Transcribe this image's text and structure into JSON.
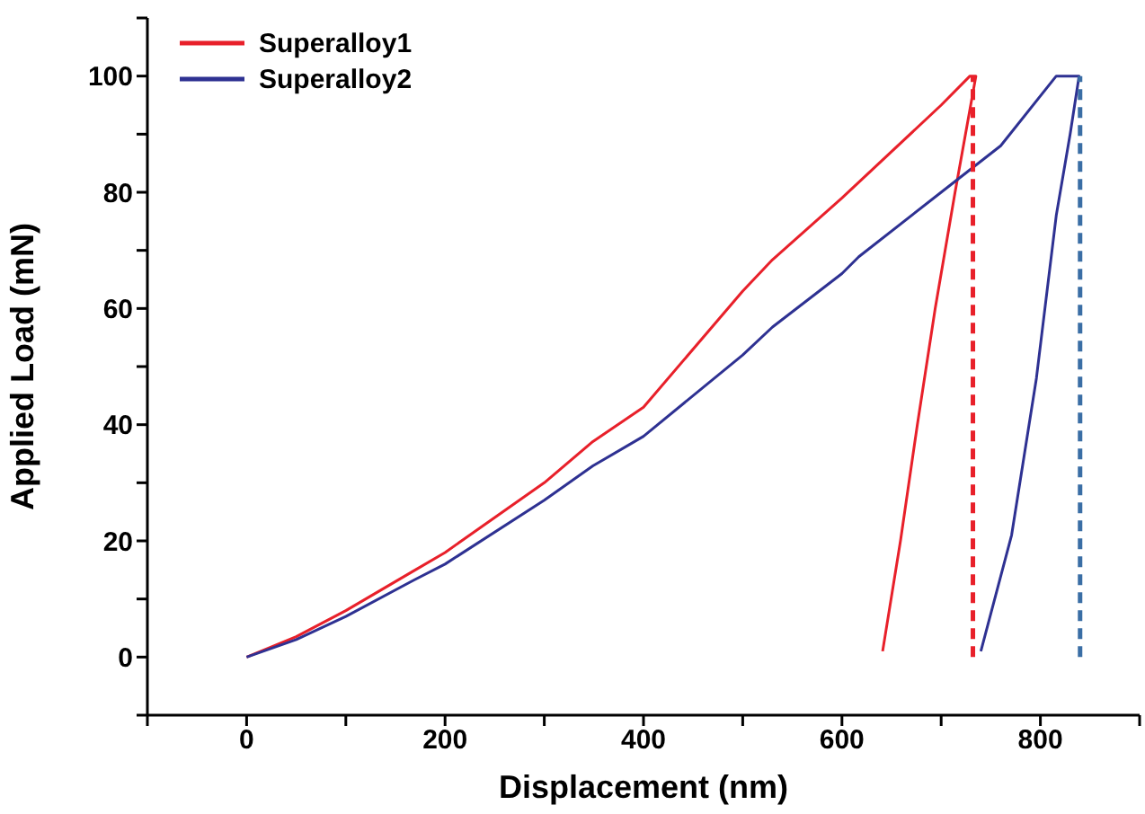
{
  "chart_data": {
    "type": "line",
    "xlabel": "Displacement (nm)",
    "ylabel": "Applied Load (mN)",
    "xlim": [
      -100,
      900
    ],
    "xticks": [
      {
        "value": -100,
        "label": null
      },
      0,
      {
        "value": 100,
        "label": null
      },
      200,
      {
        "value": 300,
        "label": null
      },
      400,
      {
        "value": 500,
        "label": null
      },
      600,
      {
        "value": 700,
        "label": null
      },
      800,
      {
        "value": 900,
        "label": null
      }
    ],
    "ylim": [
      -10,
      110
    ],
    "yticks": [
      {
        "value": -10,
        "label": null
      },
      0,
      {
        "value": 10,
        "label": null
      },
      20,
      {
        "value": 30,
        "label": null
      },
      40,
      {
        "value": 50,
        "label": null
      },
      60,
      {
        "value": 70,
        "label": null
      },
      80,
      {
        "value": 90,
        "label": null
      },
      100,
      {
        "value": 110,
        "label": null
      }
    ],
    "legend": "top left",
    "marker": "none",
    "series": [
      {
        "name": "Superalloy1",
        "color": "#e8202a",
        "line_style": "solid",
        "x": [
          0,
          50,
          100,
          168,
          200,
          300,
          349,
          400,
          500,
          530,
          600,
          700,
          729,
          735,
          714,
          694,
          676,
          659,
          641
        ],
        "values": [
          0,
          3.5,
          8,
          14.8,
          18,
          30,
          37.1,
          43,
          63,
          68.4,
          79,
          95,
          100,
          100,
          80,
          60,
          40,
          20,
          1
        ]
      },
      {
        "name": "Superalloy2",
        "color": "#2e3192",
        "line_style": "solid",
        "x": [
          0,
          50,
          100,
          168,
          200,
          300,
          349,
          400,
          500,
          530,
          600,
          617,
          700,
          760,
          816,
          839,
          830,
          816,
          796,
          771,
          740
        ],
        "values": [
          0,
          3,
          7,
          13.2,
          16,
          27,
          32.9,
          38,
          52,
          56.8,
          66,
          68.9,
          80,
          88,
          100,
          100,
          90,
          76,
          48,
          21,
          1
        ]
      },
      {
        "color": "#e8202a",
        "line_style": "dashed",
        "x": [
          732,
          732
        ],
        "values": [
          0,
          100
        ]
      },
      {
        "color": "#3a6ea5",
        "line_style": "dashed",
        "x": [
          840,
          840
        ],
        "values": [
          0,
          100
        ]
      }
    ]
  }
}
